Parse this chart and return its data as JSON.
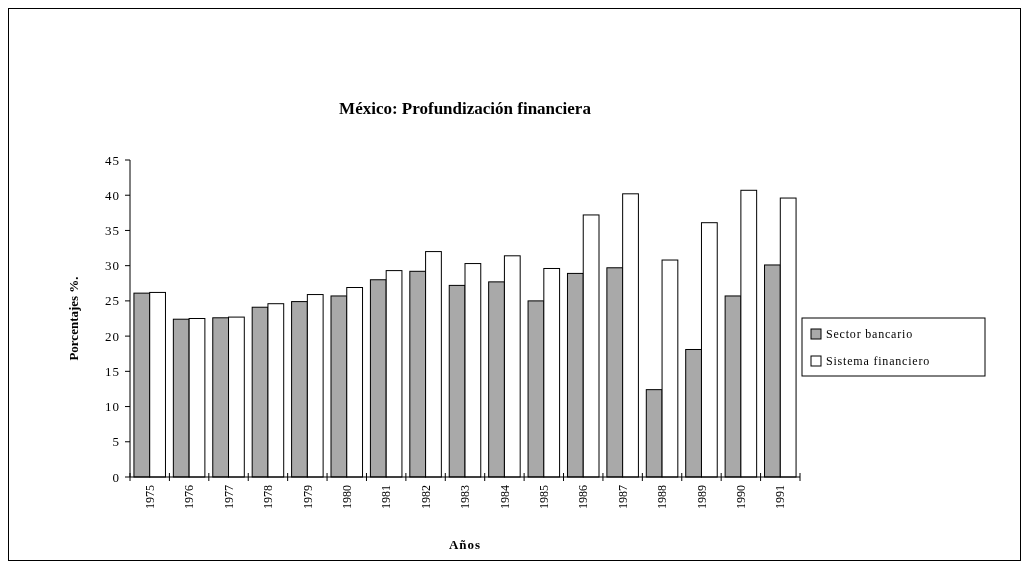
{
  "chart_data": {
    "type": "bar",
    "title": "México: Profundización financiera",
    "xlabel": "Años",
    "ylabel": "Porcentajes %.",
    "categories": [
      "1975",
      "1976",
      "1977",
      "1978",
      "1979",
      "1980",
      "1981",
      "1982",
      "1983",
      "1984",
      "1985",
      "1986",
      "1987",
      "1988",
      "1989",
      "1990",
      "1991"
    ],
    "series": [
      {
        "name": "Sector bancario",
        "color": "#a9a9a9",
        "values": [
          26.1,
          22.4,
          22.6,
          24.1,
          24.9,
          25.7,
          28.0,
          29.2,
          27.2,
          27.7,
          25.0,
          28.9,
          29.7,
          12.4,
          18.1,
          25.7,
          30.1
        ]
      },
      {
        "name": "Sistema financiero",
        "color": "#ffffff",
        "values": [
          26.2,
          22.5,
          22.7,
          24.6,
          25.9,
          26.9,
          29.3,
          32.0,
          30.3,
          31.4,
          29.6,
          37.2,
          40.2,
          30.8,
          36.1,
          40.7,
          39.6
        ]
      }
    ],
    "ylim": [
      0,
      45
    ],
    "yticks": [
      0,
      5,
      10,
      15,
      20,
      25,
      30,
      35,
      40,
      45
    ],
    "grid": false,
    "legend": "right"
  }
}
